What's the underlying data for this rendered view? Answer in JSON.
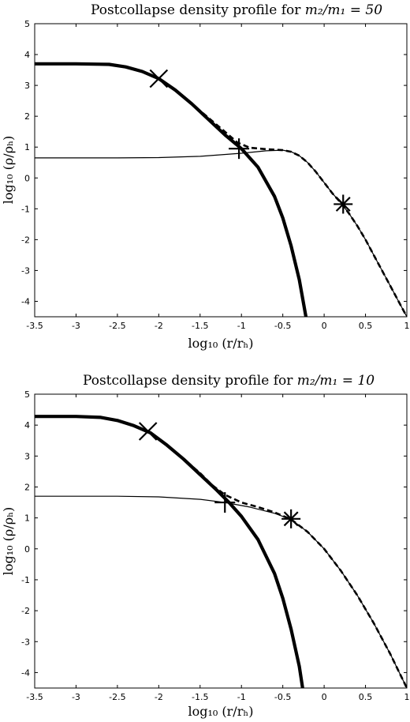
{
  "chart_data": [
    {
      "type": "line",
      "title": "Postcollapse density profile for m₂/m₁ = 50",
      "title_prefix": "Postcollapse density profile for ",
      "title_math": "m₂/m₁ = 50",
      "xlabel": "log₁₀ (r/rₕ)",
      "ylabel": "log₁₀ (ρ/ρₕ)",
      "xlim": [
        -3.5,
        1
      ],
      "ylim": [
        -4.5,
        5
      ],
      "xticks": [
        "-3.5",
        "-3",
        "-2.5",
        "-2",
        "-1.5",
        "-1",
        "-0.5",
        "0",
        "0.5",
        "1"
      ],
      "yticks": [
        "5",
        "4",
        "3",
        "2",
        "1",
        "0",
        "-1",
        "-2",
        "-3",
        "-4"
      ],
      "grid": false,
      "series": [
        {
          "style": "thick-solid",
          "x": [
            -3.5,
            -3.0,
            -2.6,
            -2.4,
            -2.2,
            -2.0,
            -1.8,
            -1.6,
            -1.4,
            -1.2,
            -1.0,
            -0.8,
            -0.6,
            -0.5,
            -0.4,
            -0.3,
            -0.22
          ],
          "y": [
            3.7,
            3.7,
            3.68,
            3.6,
            3.45,
            3.22,
            2.85,
            2.4,
            1.9,
            1.4,
            0.95,
            0.35,
            -0.6,
            -1.3,
            -2.2,
            -3.3,
            -4.5
          ]
        },
        {
          "style": "thin-solid",
          "x": [
            -3.5,
            -2.5,
            -2.0,
            -1.5,
            -1.0,
            -0.7,
            -0.5,
            -0.4,
            -0.3,
            -0.2,
            -0.1,
            0.0,
            0.1,
            0.2,
            0.3,
            0.4,
            0.5,
            0.6,
            0.7,
            0.8,
            0.9,
            1.0
          ],
          "y": [
            0.65,
            0.65,
            0.66,
            0.7,
            0.8,
            0.88,
            0.9,
            0.85,
            0.72,
            0.5,
            0.2,
            -0.15,
            -0.5,
            -0.8,
            -1.15,
            -1.55,
            -2.0,
            -2.5,
            -3.0,
            -3.5,
            -4.0,
            -4.5
          ]
        },
        {
          "style": "dashed",
          "x": [
            -3.5,
            -3.0,
            -2.6,
            -2.4,
            -2.2,
            -2.0,
            -1.8,
            -1.6,
            -1.4,
            -1.2,
            -1.05,
            -0.9,
            -0.7,
            -0.5,
            -0.4,
            -0.3,
            -0.2,
            -0.1,
            0.0,
            0.1,
            0.2,
            0.3,
            0.4,
            0.5,
            0.6,
            0.7,
            0.8,
            0.9,
            1.0
          ],
          "y": [
            3.7,
            3.7,
            3.68,
            3.6,
            3.45,
            3.22,
            2.85,
            2.4,
            1.95,
            1.5,
            1.15,
            0.98,
            0.93,
            0.9,
            0.85,
            0.72,
            0.5,
            0.2,
            -0.15,
            -0.5,
            -0.8,
            -1.15,
            -1.55,
            -2.0,
            -2.5,
            -3.0,
            -3.5,
            -4.0,
            -4.5
          ]
        }
      ],
      "markers": [
        {
          "symbol": "x",
          "x": -2.0,
          "y": 3.22
        },
        {
          "symbol": "plus",
          "x": -1.03,
          "y": 0.95
        },
        {
          "symbol": "star",
          "x": 0.23,
          "y": -0.85
        }
      ]
    },
    {
      "type": "line",
      "title": "Postcollapse density profile for m₂/m₁ = 10",
      "title_prefix": "Postcollapse density profile for ",
      "title_math": "m₂/m₁ = 10",
      "xlabel": "log₁₀ (r/rₕ)",
      "ylabel": "log₁₀ (ρ/ρₕ)",
      "xlim": [
        -3.5,
        1
      ],
      "ylim": [
        -4.5,
        5
      ],
      "xticks": [
        "-3.5",
        "-3",
        "-2.5",
        "-2",
        "-1.5",
        "-1",
        "-0.5",
        "0",
        "0.5",
        "1"
      ],
      "yticks": [
        "5",
        "4",
        "3",
        "2",
        "1",
        "0",
        "-1",
        "-2",
        "-3",
        "-4"
      ],
      "grid": false,
      "series": [
        {
          "style": "thick-solid",
          "x": [
            -3.5,
            -3.0,
            -2.7,
            -2.5,
            -2.3,
            -2.1,
            -1.9,
            -1.7,
            -1.5,
            -1.3,
            -1.15,
            -1.0,
            -0.8,
            -0.6,
            -0.5,
            -0.4,
            -0.3,
            -0.26
          ],
          "y": [
            4.28,
            4.28,
            4.25,
            4.15,
            3.98,
            3.75,
            3.35,
            2.9,
            2.4,
            1.9,
            1.5,
            1.05,
            0.3,
            -0.8,
            -1.6,
            -2.6,
            -3.8,
            -4.5
          ]
        },
        {
          "style": "thin-solid",
          "x": [
            -3.5,
            -2.5,
            -2.0,
            -1.5,
            -1.2,
            -0.9,
            -0.6,
            -0.4,
            -0.2,
            0.0,
            0.2,
            0.4,
            0.6,
            0.8,
            0.9,
            1.0
          ],
          "y": [
            1.7,
            1.7,
            1.68,
            1.6,
            1.5,
            1.35,
            1.15,
            0.95,
            0.55,
            0.0,
            -0.7,
            -1.5,
            -2.4,
            -3.4,
            -3.95,
            -4.5
          ]
        },
        {
          "style": "dashed",
          "x": [
            -3.5,
            -3.0,
            -2.7,
            -2.5,
            -2.3,
            -2.1,
            -1.9,
            -1.7,
            -1.5,
            -1.35,
            -1.2,
            -1.0,
            -0.8,
            -0.6,
            -0.4,
            -0.2,
            0.0,
            0.2,
            0.4,
            0.6,
            0.8,
            0.9,
            1.0
          ],
          "y": [
            4.28,
            4.28,
            4.25,
            4.15,
            3.98,
            3.75,
            3.35,
            2.9,
            2.45,
            2.05,
            1.75,
            1.5,
            1.35,
            1.18,
            0.95,
            0.55,
            0.0,
            -0.7,
            -1.5,
            -2.4,
            -3.4,
            -3.95,
            -4.5
          ]
        }
      ],
      "markers": [
        {
          "symbol": "x",
          "x": -2.13,
          "y": 3.8
        },
        {
          "symbol": "plus",
          "x": -1.2,
          "y": 1.5
        },
        {
          "symbol": "star",
          "x": -0.4,
          "y": 0.97
        }
      ]
    }
  ]
}
